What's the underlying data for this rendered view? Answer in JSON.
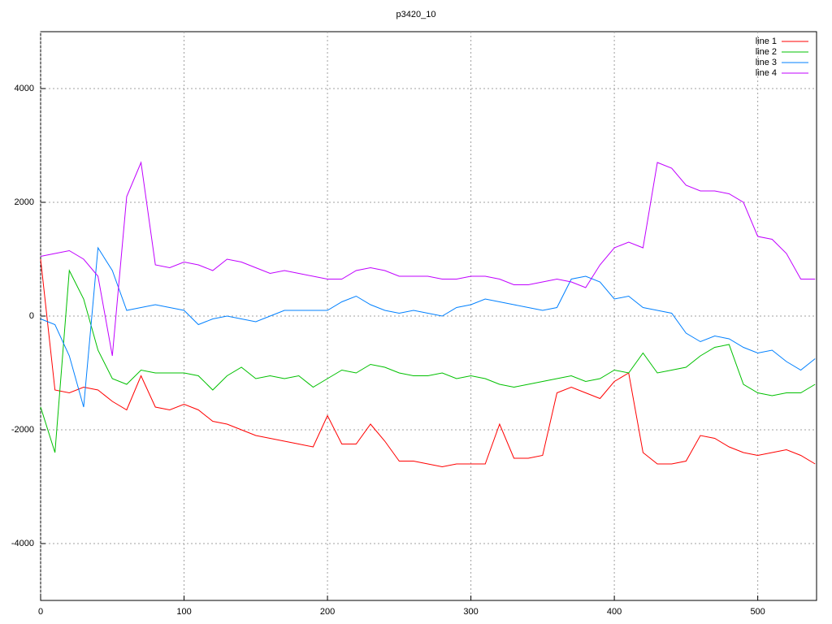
{
  "chart_data": {
    "type": "line",
    "title": "p3420_10",
    "x": [
      0,
      10,
      20,
      30,
      40,
      50,
      60,
      70,
      80,
      90,
      100,
      110,
      120,
      130,
      140,
      150,
      160,
      170,
      180,
      190,
      200,
      210,
      220,
      230,
      240,
      250,
      260,
      270,
      280,
      290,
      300,
      310,
      320,
      330,
      340,
      350,
      360,
      370,
      380,
      390,
      400,
      410,
      420,
      430,
      440,
      450,
      460,
      470,
      480,
      490,
      500,
      510,
      520,
      530,
      540
    ],
    "series": [
      {
        "name": "line 1",
        "color": "#ff0000",
        "values": [
          1000,
          -1300,
          -1350,
          -1250,
          -1300,
          -1500,
          -1650,
          -1050,
          -1600,
          -1650,
          -1550,
          -1650,
          -1850,
          -1900,
          -2000,
          -2100,
          -2150,
          -2200,
          -2250,
          -2300,
          -1750,
          -2250,
          -2250,
          -1900,
          -2200,
          -2550,
          -2550,
          -2600,
          -2650,
          -2600,
          -2600,
          -2600,
          -1900,
          -2500,
          -2500,
          -2450,
          -1350,
          -1250,
          -1350,
          -1450,
          -1150,
          -1000,
          -2400,
          -2600,
          -2600,
          -2550,
          -2100,
          -2150,
          -2300,
          -2400,
          -2450,
          -2400,
          -2350,
          -2450,
          -2600
        ]
      },
      {
        "name": "line 2",
        "color": "#00c000",
        "values": [
          -1600,
          -2400,
          800,
          300,
          -600,
          -1100,
          -1200,
          -950,
          -1000,
          -1000,
          -1000,
          -1050,
          -1300,
          -1050,
          -900,
          -1100,
          -1050,
          -1100,
          -1050,
          -1250,
          -1100,
          -950,
          -1000,
          -850,
          -900,
          -1000,
          -1050,
          -1050,
          -1000,
          -1100,
          -1050,
          -1100,
          -1200,
          -1250,
          -1200,
          -1150,
          -1100,
          -1050,
          -1150,
          -1100,
          -950,
          -1000,
          -650,
          -1000,
          -950,
          -900,
          -700,
          -550,
          -500,
          -1200,
          -1350,
          -1400,
          -1350,
          -1350,
          -1200
        ]
      },
      {
        "name": "line 3",
        "color": "#0080ff",
        "values": [
          -50,
          -150,
          -700,
          -1600,
          1200,
          800,
          100,
          150,
          200,
          150,
          100,
          -150,
          -50,
          0,
          -50,
          -100,
          0,
          100,
          100,
          100,
          100,
          250,
          350,
          200,
          100,
          50,
          100,
          50,
          0,
          150,
          200,
          300,
          250,
          200,
          150,
          100,
          150,
          650,
          700,
          600,
          300,
          350,
          150,
          100,
          50,
          -300,
          -450,
          -350,
          -400,
          -550,
          -650,
          -600,
          -800,
          -950,
          -750
        ]
      },
      {
        "name": "line 4",
        "color": "#c000ff",
        "values": [
          1050,
          1100,
          1150,
          1000,
          700,
          -700,
          2100,
          2700,
          900,
          850,
          950,
          900,
          800,
          1000,
          950,
          850,
          750,
          800,
          750,
          700,
          650,
          650,
          800,
          850,
          800,
          700,
          700,
          700,
          650,
          650,
          700,
          700,
          650,
          550,
          550,
          600,
          650,
          600,
          500,
          900,
          1200,
          1300,
          1200,
          2700,
          2600,
          2300,
          2200,
          2200,
          2150,
          2000,
          1400,
          1350,
          1100,
          650,
          650
        ]
      }
    ],
    "xlim": [
      0,
      541
    ],
    "ylim": [
      -5000,
      5000
    ],
    "xticks": [
      0,
      100,
      200,
      300,
      400,
      500
    ],
    "yticks": [
      -4000,
      -2000,
      0,
      2000,
      4000
    ],
    "grid": true
  }
}
